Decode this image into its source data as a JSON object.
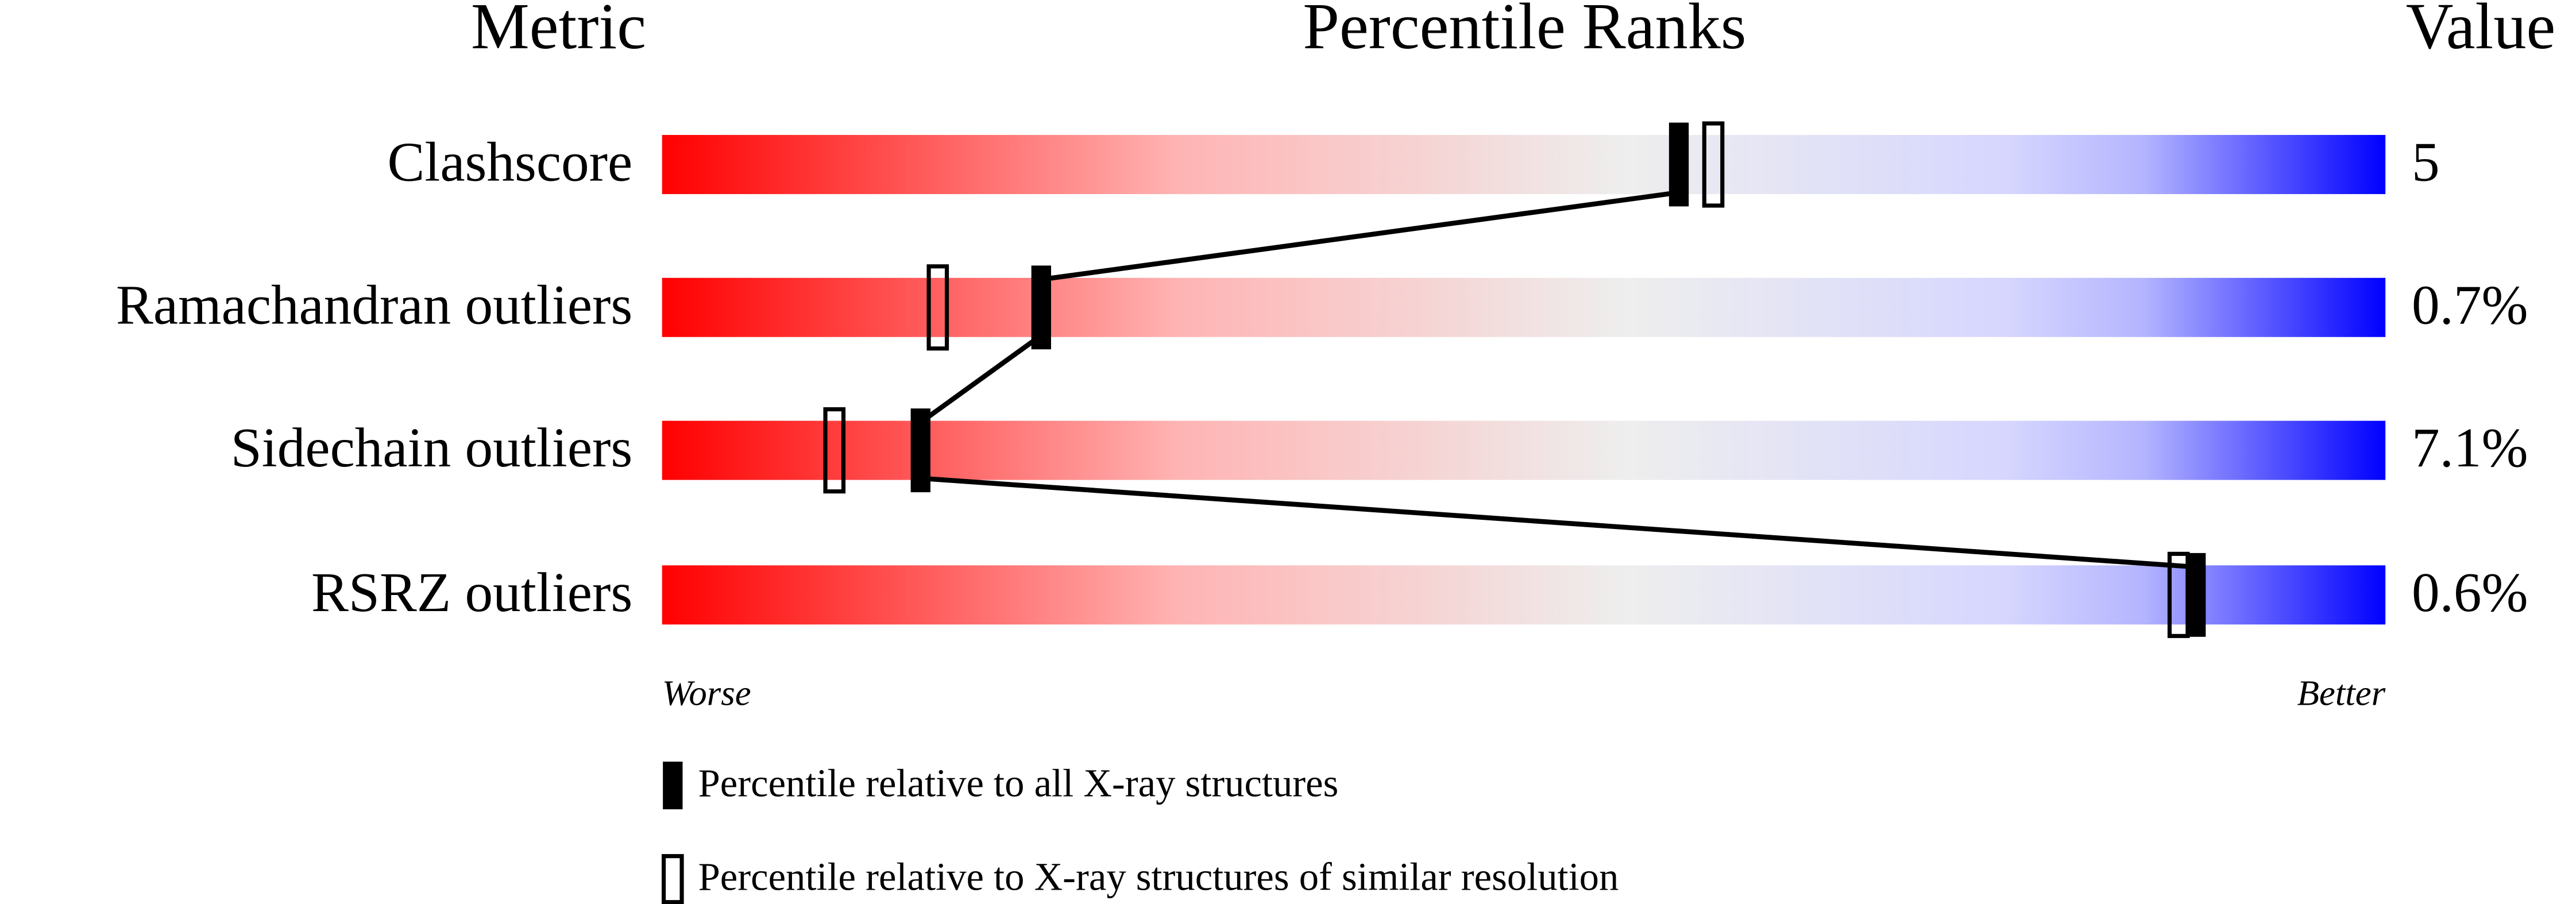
{
  "chart_data": {
    "type": "percentile-slider",
    "headers": [
      "Metric",
      "Percentile Ranks",
      "Value"
    ],
    "categories": [
      "Clashscore",
      "Ramachandran outliers",
      "Sidechain outliers",
      "RSRZ outliers"
    ],
    "values": [
      5,
      0.7,
      7.1,
      0.6
    ],
    "value_labels": [
      "5",
      "0.7%",
      "7.1%",
      "0.6%"
    ],
    "xlim": [
      0,
      100
    ],
    "axis_labels": [
      "Worse",
      "Better"
    ],
    "series": [
      {
        "name": "Percentile relative to all X-ray structures",
        "color": "#000000",
        "style": "filled",
        "values": [
          59,
          22,
          15,
          89
        ]
      },
      {
        "name": "Percentile relative to X-ray structures of similar resolution",
        "color": "#000000",
        "style": "open",
        "values": [
          61,
          16,
          10,
          88
        ]
      }
    ]
  }
}
